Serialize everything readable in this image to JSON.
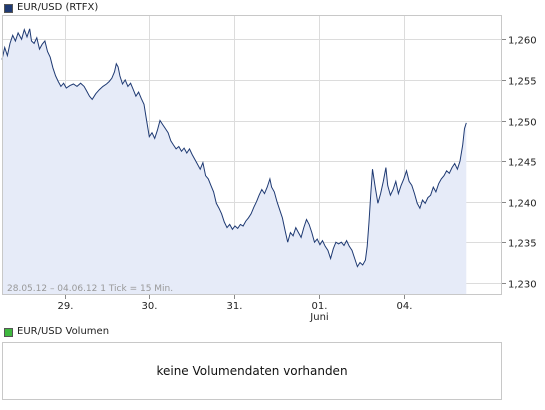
{
  "legend_price": {
    "label": "EUR/USD (RTFX)",
    "color": "#1f3a73"
  },
  "legend_volume": {
    "label": "EUR/USD Volumen",
    "color": "#3fb83f"
  },
  "volume_message": "keine Volumendaten vorhanden",
  "info_text": "28.05.12 – 04.06.12   1 Tick = 15 Min.",
  "chart_data": {
    "type": "area",
    "title": "EUR/USD (RTFX)",
    "xlabel": "",
    "ylabel": "",
    "ylim": [
      1.2285,
      1.263
    ],
    "grid": true,
    "line_color": "#1f3a73",
    "fill_color": "#e6ebf8",
    "y_ticks": [
      1.23,
      1.235,
      1.24,
      1.245,
      1.25,
      1.255,
      1.26
    ],
    "y_tick_labels": [
      "1,230",
      "1,235",
      "1,240",
      "1,245",
      "1,250",
      "1,255",
      "1,260"
    ],
    "x_ticks": [
      {
        "t": 0.7,
        "label": "29."
      },
      {
        "t": 1.65,
        "label": "30."
      },
      {
        "t": 2.6,
        "label": "31."
      },
      {
        "t": 3.55,
        "label": "01.",
        "sublabel": "Juni"
      },
      {
        "t": 4.5,
        "label": "04."
      }
    ],
    "xlim": [
      0.0,
      5.6
    ],
    "series": [
      {
        "values": [
          [
            0.0,
            1.2575
          ],
          [
            0.03,
            1.259
          ],
          [
            0.06,
            1.258
          ],
          [
            0.09,
            1.2595
          ],
          [
            0.12,
            1.2605
          ],
          [
            0.15,
            1.2598
          ],
          [
            0.18,
            1.2608
          ],
          [
            0.22,
            1.26
          ],
          [
            0.25,
            1.2612
          ],
          [
            0.28,
            1.2603
          ],
          [
            0.31,
            1.2613
          ],
          [
            0.33,
            1.2598
          ],
          [
            0.36,
            1.2595
          ],
          [
            0.39,
            1.2602
          ],
          [
            0.42,
            1.2588
          ],
          [
            0.45,
            1.2594
          ],
          [
            0.48,
            1.2598
          ],
          [
            0.51,
            1.2585
          ],
          [
            0.54,
            1.2578
          ],
          [
            0.57,
            1.2565
          ],
          [
            0.6,
            1.2555
          ],
          [
            0.63,
            1.2548
          ],
          [
            0.66,
            1.2542
          ],
          [
            0.69,
            1.2546
          ],
          [
            0.72,
            1.254
          ],
          [
            0.76,
            1.2543
          ],
          [
            0.8,
            1.2545
          ],
          [
            0.84,
            1.2542
          ],
          [
            0.88,
            1.2546
          ],
          [
            0.92,
            1.2542
          ],
          [
            0.95,
            1.2536
          ],
          [
            0.98,
            1.253
          ],
          [
            1.01,
            1.2526
          ],
          [
            1.05,
            1.2533
          ],
          [
            1.09,
            1.2538
          ],
          [
            1.13,
            1.2542
          ],
          [
            1.17,
            1.2545
          ],
          [
            1.2,
            1.2548
          ],
          [
            1.23,
            1.2552
          ],
          [
            1.26,
            1.256
          ],
          [
            1.28,
            1.257
          ],
          [
            1.3,
            1.2566
          ],
          [
            1.32,
            1.2555
          ],
          [
            1.35,
            1.2545
          ],
          [
            1.38,
            1.255
          ],
          [
            1.41,
            1.2542
          ],
          [
            1.44,
            1.2546
          ],
          [
            1.47,
            1.2538
          ],
          [
            1.5,
            1.253
          ],
          [
            1.53,
            1.2535
          ],
          [
            1.56,
            1.2527
          ],
          [
            1.59,
            1.252
          ],
          [
            1.62,
            1.25
          ],
          [
            1.65,
            1.248
          ],
          [
            1.68,
            1.2485
          ],
          [
            1.71,
            1.2478
          ],
          [
            1.74,
            1.2488
          ],
          [
            1.77,
            1.25
          ],
          [
            1.8,
            1.2495
          ],
          [
            1.83,
            1.249
          ],
          [
            1.86,
            1.2485
          ],
          [
            1.89,
            1.2475
          ],
          [
            1.92,
            1.247
          ],
          [
            1.95,
            1.2465
          ],
          [
            1.98,
            1.2468
          ],
          [
            2.01,
            1.2462
          ],
          [
            2.04,
            1.2466
          ],
          [
            2.07,
            1.246
          ],
          [
            2.1,
            1.2465
          ],
          [
            2.13,
            1.2458
          ],
          [
            2.16,
            1.2452
          ],
          [
            2.19,
            1.2446
          ],
          [
            2.22,
            1.244
          ],
          [
            2.25,
            1.2448
          ],
          [
            2.28,
            1.2432
          ],
          [
            2.31,
            1.2428
          ],
          [
            2.34,
            1.242
          ],
          [
            2.37,
            1.2412
          ],
          [
            2.4,
            1.2398
          ],
          [
            2.43,
            1.2392
          ],
          [
            2.46,
            1.2385
          ],
          [
            2.49,
            1.2375
          ],
          [
            2.52,
            1.2368
          ],
          [
            2.55,
            1.2372
          ],
          [
            2.58,
            1.2366
          ],
          [
            2.61,
            1.237
          ],
          [
            2.64,
            1.2367
          ],
          [
            2.67,
            1.2372
          ],
          [
            2.7,
            1.237
          ],
          [
            2.73,
            1.2376
          ],
          [
            2.76,
            1.238
          ],
          [
            2.79,
            1.2385
          ],
          [
            2.82,
            1.2393
          ],
          [
            2.85,
            1.24
          ],
          [
            2.88,
            1.2408
          ],
          [
            2.91,
            1.2415
          ],
          [
            2.94,
            1.241
          ],
          [
            2.97,
            1.2418
          ],
          [
            3.0,
            1.2428
          ],
          [
            3.02,
            1.2418
          ],
          [
            3.05,
            1.2412
          ],
          [
            3.08,
            1.24
          ],
          [
            3.11,
            1.239
          ],
          [
            3.14,
            1.238
          ],
          [
            3.17,
            1.2365
          ],
          [
            3.2,
            1.235
          ],
          [
            3.23,
            1.2362
          ],
          [
            3.26,
            1.2358
          ],
          [
            3.29,
            1.2368
          ],
          [
            3.32,
            1.2362
          ],
          [
            3.35,
            1.2356
          ],
          [
            3.38,
            1.2368
          ],
          [
            3.41,
            1.2378
          ],
          [
            3.44,
            1.2372
          ],
          [
            3.47,
            1.2362
          ],
          [
            3.5,
            1.235
          ],
          [
            3.53,
            1.2354
          ],
          [
            3.56,
            1.2347
          ],
          [
            3.59,
            1.2352
          ],
          [
            3.62,
            1.2345
          ],
          [
            3.65,
            1.234
          ],
          [
            3.68,
            1.233
          ],
          [
            3.71,
            1.2342
          ],
          [
            3.74,
            1.235
          ],
          [
            3.77,
            1.2348
          ],
          [
            3.8,
            1.235
          ],
          [
            3.83,
            1.2346
          ],
          [
            3.86,
            1.2352
          ],
          [
            3.89,
            1.2345
          ],
          [
            3.92,
            1.234
          ],
          [
            3.95,
            1.233
          ],
          [
            3.98,
            1.232
          ],
          [
            4.01,
            1.2325
          ],
          [
            4.04,
            1.2322
          ],
          [
            4.07,
            1.2328
          ],
          [
            4.09,
            1.2345
          ],
          [
            4.11,
            1.2375
          ],
          [
            4.13,
            1.241
          ],
          [
            4.15,
            1.244
          ],
          [
            4.18,
            1.2418
          ],
          [
            4.21,
            1.2398
          ],
          [
            4.24,
            1.241
          ],
          [
            4.27,
            1.2425
          ],
          [
            4.3,
            1.2442
          ],
          [
            4.32,
            1.242
          ],
          [
            4.35,
            1.2408
          ],
          [
            4.38,
            1.2415
          ],
          [
            4.41,
            1.2425
          ],
          [
            4.44,
            1.241
          ],
          [
            4.47,
            1.242
          ],
          [
            4.5,
            1.2428
          ],
          [
            4.53,
            1.2438
          ],
          [
            4.56,
            1.2425
          ],
          [
            4.59,
            1.242
          ],
          [
            4.62,
            1.241
          ],
          [
            4.65,
            1.2398
          ],
          [
            4.68,
            1.2392
          ],
          [
            4.71,
            1.2402
          ],
          [
            4.74,
            1.2398
          ],
          [
            4.77,
            1.2405
          ],
          [
            4.8,
            1.2408
          ],
          [
            4.83,
            1.2418
          ],
          [
            4.86,
            1.2412
          ],
          [
            4.89,
            1.2422
          ],
          [
            4.92,
            1.2428
          ],
          [
            4.95,
            1.2432
          ],
          [
            4.98,
            1.2438
          ],
          [
            5.01,
            1.2435
          ],
          [
            5.04,
            1.2442
          ],
          [
            5.07,
            1.2447
          ],
          [
            5.1,
            1.244
          ],
          [
            5.13,
            1.245
          ],
          [
            5.16,
            1.247
          ],
          [
            5.18,
            1.249
          ],
          [
            5.2,
            1.2497
          ]
        ]
      }
    ]
  }
}
